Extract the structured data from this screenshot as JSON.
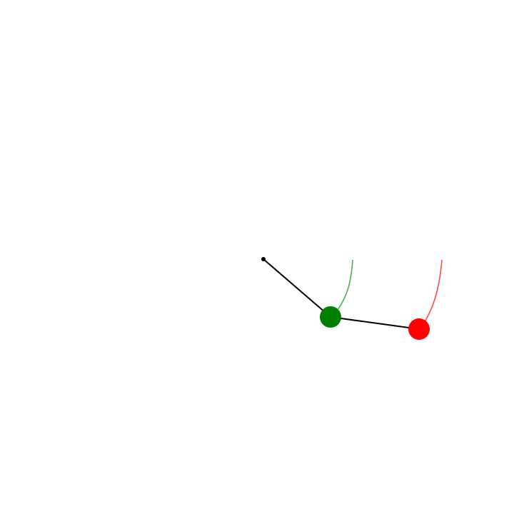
{
  "scene": {
    "type": "double-pendulum",
    "background_color": "#ffffff"
  },
  "pivot": {
    "color": "#000000"
  },
  "rods": {
    "color": "#000000"
  },
  "bob1": {
    "color": "#008000",
    "trail_color": "#4caf50"
  },
  "bob2": {
    "color": "#ff0000",
    "trail_color": "#ff4d4d"
  }
}
